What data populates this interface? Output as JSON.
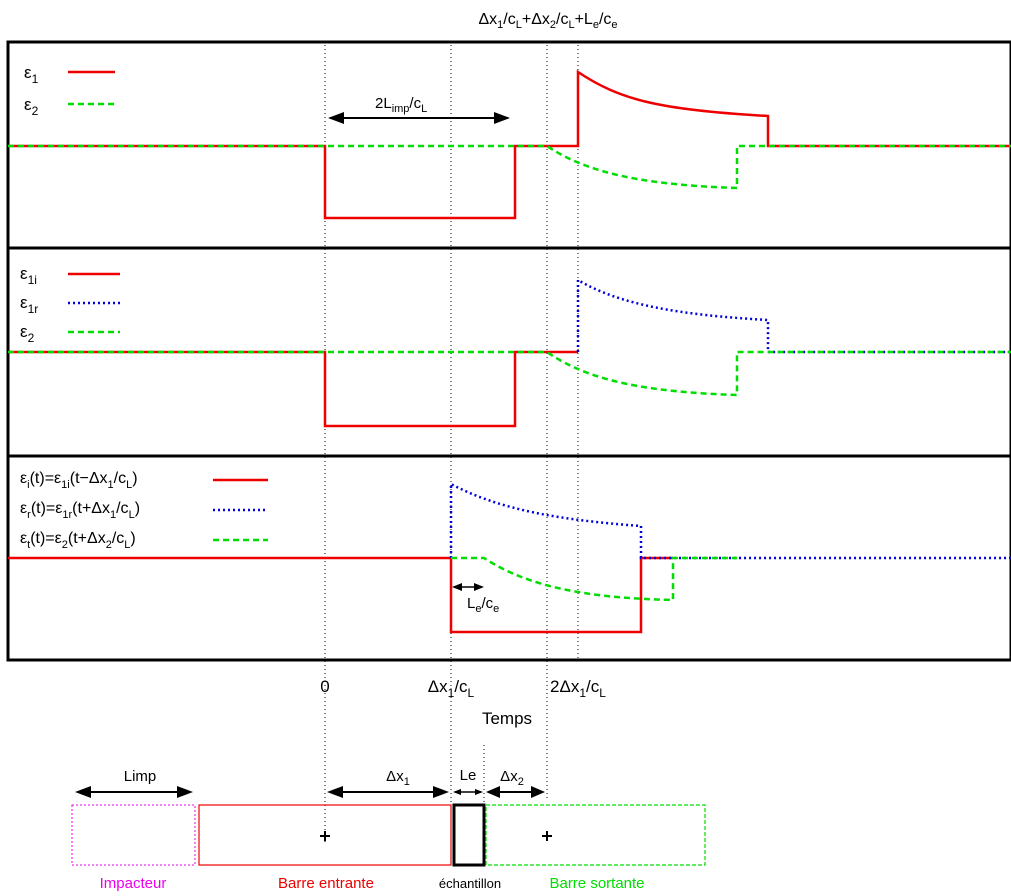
{
  "top_label": {
    "pre": "Δx",
    "s1": "1",
    "m1": "/c",
    "s2": "L",
    "m2": "+Δx",
    "s3": "2",
    "m3": "/c",
    "s4": "L",
    "m4": "+L",
    "s5": "e",
    "m5": "/c",
    "s6": "e"
  },
  "panels": [
    {
      "legend": [
        {
          "sym": "ε",
          "sub": "1",
          "tail": "",
          "color": "#ee0000",
          "style": "solid"
        },
        {
          "sym": "ε",
          "sub": "2",
          "tail": "",
          "color": "#00dd00",
          "style": "dashed"
        }
      ],
      "annotation": {
        "a": "2L",
        "b": "imp",
        "c": "/c",
        "d": "L"
      }
    },
    {
      "legend": [
        {
          "sym": "ε",
          "sub": "1i",
          "tail": "",
          "color": "#ee0000",
          "style": "solid"
        },
        {
          "sym": "ε",
          "sub": "1r",
          "tail": "",
          "color": "#0000dd",
          "style": "dotted"
        },
        {
          "sym": "ε",
          "sub": "2",
          "tail": "",
          "color": "#00dd00",
          "style": "dashed"
        }
      ]
    },
    {
      "legend": [
        {
          "sym": "ε",
          "sub": "i",
          "tail": "(t)=ε",
          "sub2": "1i",
          "tail2": "(t−Δx",
          "sub3": "1",
          "tail3": "/c",
          "sub4": "L",
          "tail4": ")",
          "color": "#ee0000",
          "style": "solid"
        },
        {
          "sym": "ε",
          "sub": "r",
          "tail": "(t)=ε",
          "sub2": "1r",
          "tail2": "(t+Δx",
          "sub3": "1",
          "tail3": "/c",
          "sub4": "L",
          "tail4": ")",
          "color": "#0000dd",
          "style": "dotted"
        },
        {
          "sym": "ε",
          "sub": "t",
          "tail": "(t)=ε",
          "sub2": "2",
          "tail2": "(t+Δx",
          "sub3": "2",
          "tail3": "/c",
          "sub4": "L",
          "tail4": ")",
          "color": "#00dd00",
          "style": "dashed"
        }
      ],
      "annotation": {
        "a": "L",
        "b": "e",
        "c": "/c",
        "d": "e"
      }
    }
  ],
  "x_ticks": {
    "zero": "0",
    "t1": {
      "a": "Δx",
      "b": "1",
      "c": "/c",
      "d": "L"
    },
    "t2": {
      "a": "2Δx",
      "b": "1",
      "c": "/c",
      "d": "L"
    }
  },
  "x_axis_label": "Temps",
  "bars": {
    "limp": "Limp",
    "dx1": {
      "a": "Δx",
      "b": "1"
    },
    "le": "Le",
    "dx2": {
      "a": "Δx",
      "b": "2"
    },
    "impacteur": "Impacteur",
    "entrante": "Barre entrante",
    "echantillon": "échantillon",
    "sortante": "Barre sortante",
    "colors": {
      "impacteur": "#ee00ee",
      "entrante": "#ee0000",
      "echantillon": "#000000",
      "sortante": "#00dd00"
    }
  }
}
